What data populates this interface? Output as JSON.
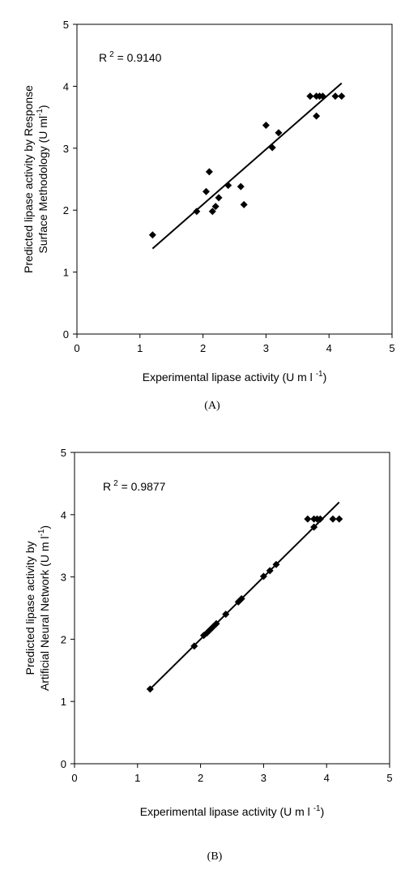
{
  "chart_data": [
    {
      "type": "scatter",
      "caption": "(A)",
      "annotation": {
        "label": "R",
        "sup": "2",
        "value": " = 0.9140"
      },
      "xlabel": {
        "text": "Experimental lipase activity (U m l ",
        "sup": "-1",
        "tail": ")"
      },
      "ylabel": {
        "lines": [
          "Predicted lipase activity by Response",
          "Surface Methodology (U ml"
        ],
        "sup": "-1",
        "tail": ")"
      },
      "xlim": [
        0,
        5
      ],
      "ylim": [
        0,
        5
      ],
      "xticks": [
        0,
        1,
        2,
        3,
        4,
        5
      ],
      "yticks": [
        0,
        1,
        2,
        3,
        4,
        5
      ],
      "grid": false,
      "trendline": {
        "x": [
          1.2,
          4.2
        ],
        "y": [
          1.38,
          4.05
        ]
      },
      "series": [
        {
          "marker": "diamond",
          "color": "#000000",
          "points": [
            [
              1.2,
              1.6
            ],
            [
              1.9,
              1.98
            ],
            [
              2.05,
              2.3
            ],
            [
              2.1,
              2.62
            ],
            [
              2.15,
              1.98
            ],
            [
              2.2,
              2.06
            ],
            [
              2.25,
              2.2
            ],
            [
              2.4,
              2.4
            ],
            [
              2.6,
              2.38
            ],
            [
              2.65,
              2.09
            ],
            [
              3.0,
              3.37
            ],
            [
              3.1,
              3.01
            ],
            [
              3.2,
              3.25
            ],
            [
              3.7,
              3.84
            ],
            [
              3.8,
              3.52
            ],
            [
              3.8,
              3.84
            ],
            [
              3.85,
              3.84
            ],
            [
              3.9,
              3.84
            ],
            [
              4.1,
              3.84
            ],
            [
              4.2,
              3.84
            ]
          ]
        }
      ]
    },
    {
      "type": "scatter",
      "caption": "(B)",
      "annotation": {
        "label": "R",
        "sup": "2",
        "value": " = 0.9877"
      },
      "xlabel": {
        "text": "Experimental lipase activity (U m l ",
        "sup": "-1",
        "tail": ")"
      },
      "ylabel": {
        "lines": [
          "Predicted lipase activity by",
          "Artificial Neural Network (U m l"
        ],
        "sup": "-1",
        "tail": ")"
      },
      "xlim": [
        0,
        5
      ],
      "ylim": [
        0,
        5
      ],
      "xticks": [
        0,
        1,
        2,
        3,
        4,
        5
      ],
      "yticks": [
        0,
        1,
        2,
        3,
        4,
        5
      ],
      "grid": false,
      "trendline": {
        "x": [
          1.2,
          4.2
        ],
        "y": [
          1.2,
          4.2
        ]
      },
      "series": [
        {
          "marker": "diamond",
          "color": "#000000",
          "points": [
            [
              1.2,
              1.2
            ],
            [
              1.9,
              1.89
            ],
            [
              2.05,
              2.06
            ],
            [
              2.1,
              2.1
            ],
            [
              2.15,
              2.15
            ],
            [
              2.2,
              2.2
            ],
            [
              2.25,
              2.25
            ],
            [
              2.4,
              2.4
            ],
            [
              2.6,
              2.6
            ],
            [
              2.65,
              2.65
            ],
            [
              3.0,
              3.01
            ],
            [
              3.1,
              3.1
            ],
            [
              3.2,
              3.2
            ],
            [
              3.7,
              3.93
            ],
            [
              3.8,
              3.8
            ],
            [
              3.8,
              3.93
            ],
            [
              3.85,
              3.93
            ],
            [
              3.9,
              3.93
            ],
            [
              4.1,
              3.93
            ],
            [
              4.2,
              3.93
            ]
          ]
        }
      ]
    }
  ]
}
